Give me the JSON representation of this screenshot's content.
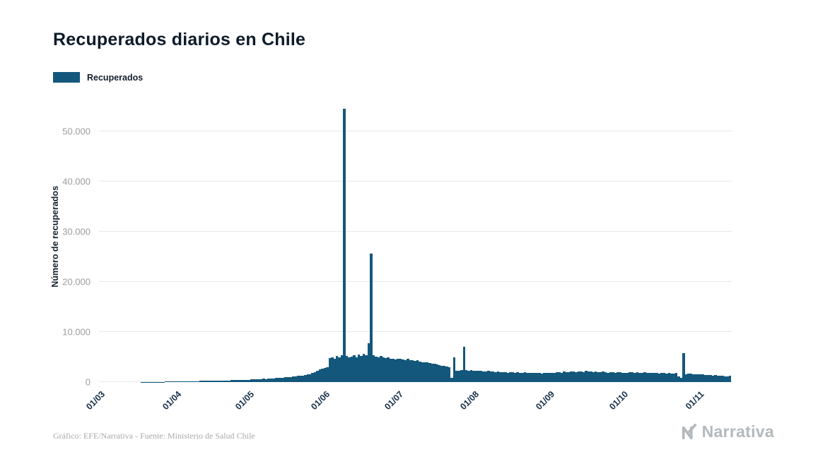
{
  "title": "Recuperados diarios en Chile",
  "legend": {
    "label": "Recuperados",
    "color": "#14577c"
  },
  "footer": {
    "credit": "Gráfico: EFE/Narrativa - Fuente: Ministerio de Salud Chile",
    "brand": "Narrativa"
  },
  "chart_data": {
    "type": "bar",
    "title": "Recuperados diarios en Chile",
    "xlabel": "",
    "ylabel": "Número de recuperados",
    "legend_position": "top-left",
    "grid": "horizontal",
    "bar_color": "#14577c",
    "x_tick_rotation": -45,
    "x_tick_labels": [
      "01/03",
      "01/04",
      "01/05",
      "01/06",
      "01/07",
      "01/08",
      "01/09",
      "01/10",
      "01/11"
    ],
    "x_tick_indices": [
      0,
      31,
      61,
      92,
      122,
      153,
      184,
      214,
      245
    ],
    "y_ticks": [
      0,
      10000,
      20000,
      30000,
      40000,
      50000
    ],
    "y_tick_labels": [
      "0",
      "10.000",
      "20.000",
      "30.000",
      "40.000",
      "50.000"
    ],
    "ylim": [
      0,
      56500
    ],
    "start_label": "01/03",
    "values": [
      0,
      0,
      0,
      0,
      0,
      0,
      0,
      0,
      0,
      0,
      0,
      0,
      0,
      0,
      5,
      8,
      10,
      14,
      18,
      22,
      30,
      35,
      40,
      45,
      55,
      60,
      70,
      80,
      90,
      100,
      110,
      120,
      130,
      140,
      150,
      160,
      170,
      180,
      200,
      190,
      210,
      220,
      230,
      250,
      240,
      260,
      280,
      270,
      300,
      310,
      320,
      330,
      350,
      340,
      360,
      380,
      400,
      390,
      420,
      440,
      460,
      480,
      500,
      520,
      550,
      580,
      600,
      640,
      620,
      680,
      700,
      750,
      780,
      820,
      850,
      900,
      950,
      1000,
      1050,
      1100,
      1150,
      1200,
      1300,
      1250,
      1400,
      1500,
      1600,
      1800,
      2000,
      2200,
      2500,
      2700,
      2800,
      3000,
      4800,
      5000,
      4600,
      5200,
      4900,
      5300,
      54480,
      5200,
      4900,
      5100,
      5300,
      5000,
      5500,
      5200,
      5600,
      5400,
      7700,
      25580,
      5300,
      5100,
      4900,
      5200,
      5000,
      4800,
      4900,
      4700,
      4600,
      4500,
      4600,
      4700,
      4500,
      4400,
      4600,
      4300,
      4400,
      4200,
      4300,
      4100,
      4000,
      3900,
      4000,
      3800,
      3700,
      3600,
      3500,
      3400,
      3300,
      3200,
      3100,
      3000,
      900,
      5000,
      2300,
      2200,
      2400,
      7000,
      2400,
      2300,
      2350,
      2300,
      2250,
      2200,
      2300,
      2150,
      2100,
      2200,
      2100,
      2050,
      2000,
      2100,
      2000,
      1950,
      2000,
      1900,
      2000,
      1950,
      1900,
      2000,
      1850,
      1900,
      1950,
      1800,
      1900,
      1850,
      1800,
      1900,
      1800,
      1750,
      1800,
      1850,
      1800,
      1900,
      1850,
      2000,
      1950,
      1900,
      2100,
      2000,
      1950,
      2100,
      2050,
      2000,
      2150,
      2100,
      2000,
      2200,
      2100,
      2050,
      2000,
      2100,
      1950,
      2000,
      2100,
      2000,
      1900,
      2000,
      1950,
      1900,
      2000,
      1950,
      1900,
      1850,
      1900,
      2000,
      1950,
      1900,
      2000,
      1850,
      1900,
      1950,
      1800,
      1900,
      1850,
      1800,
      1900,
      1750,
      1800,
      1850,
      1700,
      1800,
      1750,
      1700,
      1800,
      1100,
      900,
      5800,
      1600,
      1700,
      1650,
      1600,
      1550,
      1600,
      1550,
      1500,
      1450,
      1400,
      1350,
      1300,
      1400,
      1300,
      1250,
      1200,
      1150,
      1100,
      1200
    ]
  }
}
